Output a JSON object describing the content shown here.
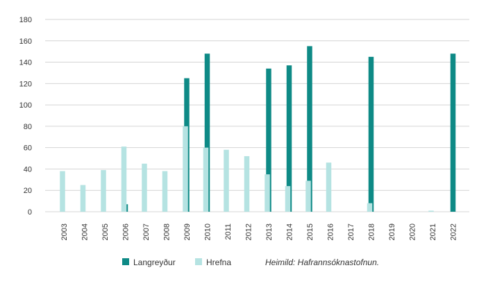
{
  "chart_data": {
    "type": "bar",
    "categories": [
      "2003",
      "2004",
      "2005",
      "2006",
      "2007",
      "2008",
      "2009",
      "2010",
      "2011",
      "2012",
      "2013",
      "2014",
      "2015",
      "2016",
      "2017",
      "2018",
      "2019",
      "2020",
      "2021",
      "2022"
    ],
    "series": [
      {
        "name": "Langreyður",
        "color": "#0e8a86",
        "values": [
          0,
          0,
          0,
          7,
          0,
          0,
          125,
          148,
          0,
          0,
          134,
          137,
          155,
          0,
          0,
          145,
          0,
          0,
          0,
          148
        ]
      },
      {
        "name": "Hrefna",
        "color": "#b5e3e2",
        "values": [
          38,
          25,
          39,
          61,
          45,
          38,
          80,
          60,
          58,
          52,
          35,
          24,
          29,
          46,
          0,
          8,
          0,
          0,
          1,
          0
        ]
      }
    ],
    "ylim": [
      0,
      180
    ],
    "yticks": [
      0,
      20,
      40,
      60,
      80,
      100,
      120,
      140,
      160,
      180
    ],
    "grid": true,
    "legend_placement": "bottom",
    "source_note": "Heimild: Hafrannsóknastofnun."
  }
}
